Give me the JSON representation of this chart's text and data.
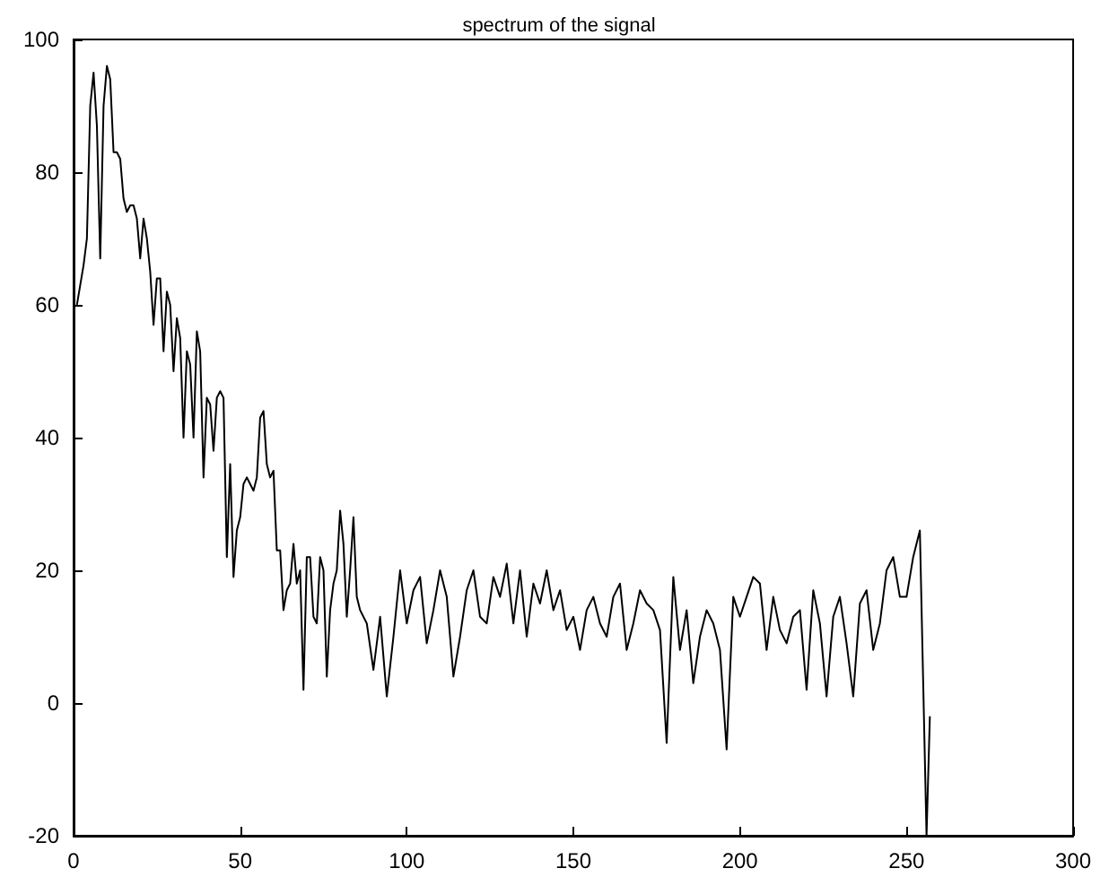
{
  "chart_data": {
    "type": "line",
    "title": "spectrum of the signal",
    "color": "#000000",
    "x": [
      1,
      2,
      3,
      4,
      5,
      6,
      7,
      8,
      9,
      10,
      11,
      12,
      13,
      14,
      15,
      16,
      17,
      18,
      19,
      20,
      21,
      22,
      23,
      24,
      25,
      26,
      27,
      28,
      29,
      30,
      31,
      32,
      33,
      34,
      35,
      36,
      37,
      38,
      39,
      40,
      41,
      42,
      43,
      44,
      45,
      46,
      47,
      48,
      49,
      50,
      51,
      52,
      53,
      54,
      55,
      56,
      57,
      58,
      59,
      60,
      61,
      62,
      63,
      64,
      65,
      66,
      67,
      68,
      69,
      70,
      71,
      72,
      73,
      74,
      75,
      76,
      77,
      78,
      79,
      80,
      81,
      82,
      83,
      84,
      85,
      86,
      88,
      90,
      92,
      94,
      96,
      98,
      100,
      102,
      104,
      106,
      108,
      110,
      112,
      114,
      116,
      118,
      120,
      122,
      124,
      126,
      128,
      130,
      132,
      134,
      136,
      138,
      140,
      142,
      144,
      146,
      148,
      150,
      152,
      154,
      156,
      158,
      160,
      162,
      164,
      166,
      168,
      170,
      172,
      174,
      176,
      178,
      180,
      182,
      184,
      186,
      188,
      190,
      192,
      194,
      196,
      198,
      200,
      202,
      204,
      206,
      208,
      210,
      212,
      214,
      216,
      218,
      220,
      222,
      224,
      226,
      228,
      230,
      232,
      234,
      236,
      238,
      240,
      242,
      244,
      246,
      248,
      250,
      252,
      254,
      256,
      257
    ],
    "values": [
      60,
      63,
      66,
      70,
      90,
      95,
      87,
      67,
      90,
      96,
      94,
      83,
      83,
      82,
      76,
      74,
      75,
      75,
      73,
      67,
      73,
      70,
      65,
      57,
      64,
      64,
      53,
      62,
      60,
      50,
      58,
      55,
      40,
      53,
      51,
      40,
      56,
      53,
      34,
      46,
      45,
      38,
      46,
      47,
      46,
      22,
      36,
      19,
      26,
      28,
      33,
      34,
      33,
      32,
      34,
      43,
      44,
      36,
      34,
      35,
      23,
      23,
      14,
      17,
      18,
      24,
      18,
      20,
      2,
      22,
      22,
      13,
      12,
      22,
      20,
      4,
      14,
      18,
      20,
      29,
      24,
      13,
      20,
      28,
      16,
      14,
      12,
      5,
      13,
      1,
      10,
      20,
      12,
      17,
      19,
      9,
      14,
      20,
      16,
      4,
      10,
      17,
      20,
      13,
      12,
      19,
      16,
      21,
      12,
      20,
      10,
      18,
      15,
      20,
      14,
      17,
      11,
      13,
      8,
      14,
      16,
      12,
      10,
      16,
      18,
      8,
      12,
      17,
      15,
      14,
      11,
      -6,
      19,
      8,
      14,
      3,
      10,
      14,
      12,
      8,
      -7,
      16,
      13,
      16,
      19,
      18,
      8,
      16,
      11,
      9,
      13,
      14,
      2,
      17,
      12,
      1,
      13,
      16,
      9,
      1,
      15,
      17,
      8,
      12,
      20,
      22,
      16,
      16,
      22,
      26,
      -20,
      -2
    ],
    "xlim": [
      0,
      300
    ],
    "xticks": [
      0,
      50,
      100,
      150,
      200,
      250,
      300
    ],
    "ylim": [
      -20,
      100
    ],
    "yticks": [
      -20,
      0,
      20,
      40,
      60,
      80,
      100
    ],
    "grid": false,
    "marker": "none",
    "line_style": "solid"
  }
}
